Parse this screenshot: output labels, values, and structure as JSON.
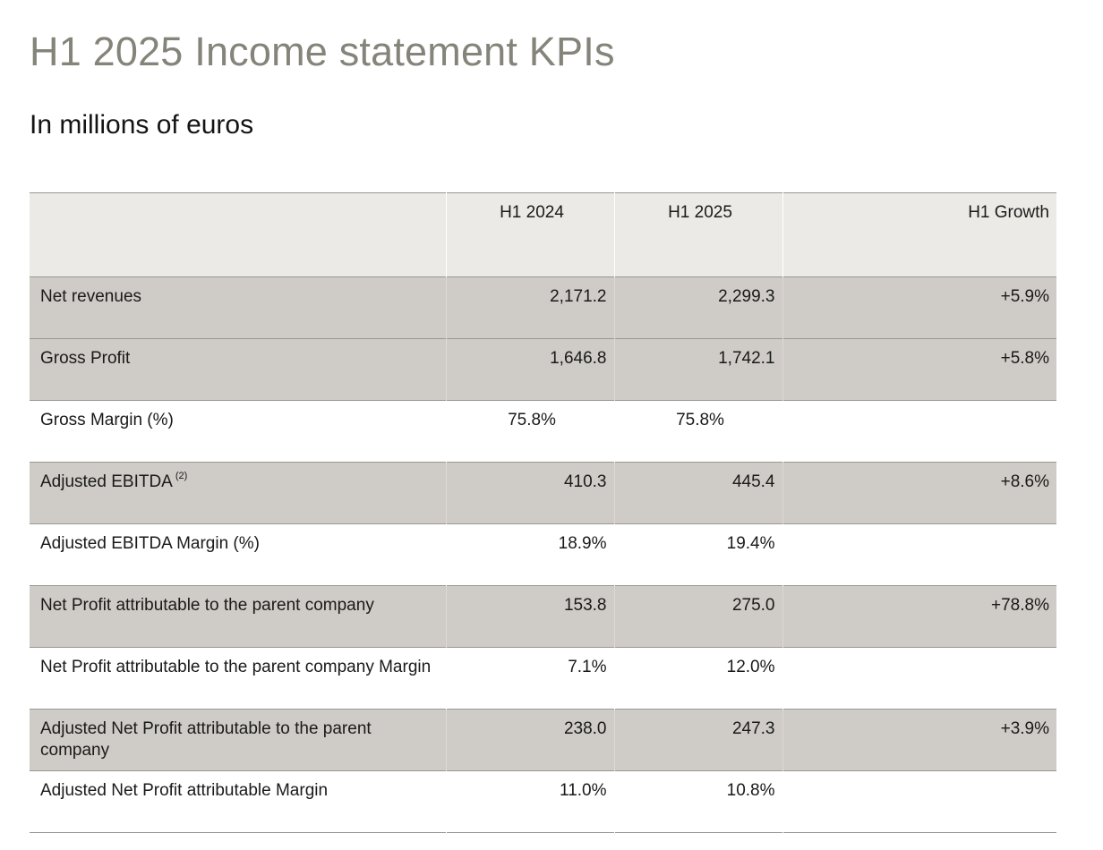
{
  "title": "H1 2025 Income statement KPIs",
  "subtitle": "In millions of euros",
  "table": {
    "headers": {
      "label": "",
      "h1_2024": "H1 2024",
      "h1_2025": "H1 2025",
      "growth": "H1 Growth"
    },
    "rows": [
      {
        "label": "Net revenues",
        "note": "",
        "h1_2024": "2,171.2",
        "h1_2025": "2,299.3",
        "growth": "+5.9%",
        "shaded": true
      },
      {
        "label": "Gross Profit",
        "note": "",
        "h1_2024": "1,646.8",
        "h1_2025": "1,742.1",
        "growth": "+5.8%",
        "shaded": true
      },
      {
        "label": "Gross Margin (%)",
        "note": "",
        "h1_2024": "75.8%",
        "h1_2025": "75.8%",
        "growth": "",
        "shaded": false
      },
      {
        "label": "Adjusted EBITDA",
        "note": "(2)",
        "h1_2024": "410.3",
        "h1_2025": "445.4",
        "growth": "+8.6%",
        "shaded": true
      },
      {
        "label": "Adjusted EBITDA Margin (%)",
        "note": "",
        "h1_2024": "18.9%",
        "h1_2025": "19.4%",
        "growth": "",
        "shaded": false
      },
      {
        "label": "Net Profit attributable to the parent company",
        "note": "",
        "h1_2024": "153.8",
        "h1_2025": "275.0",
        "growth": "+78.8%",
        "shaded": true
      },
      {
        "label": "Net Profit attributable to the parent company Margin",
        "note": "",
        "h1_2024": "7.1%",
        "h1_2025": "12.0%",
        "growth": "",
        "shaded": false
      },
      {
        "label": "Adjusted Net Profit attributable to the parent company",
        "note": "",
        "h1_2024": "238.0",
        "h1_2025": "247.3",
        "growth": "+3.9%",
        "shaded": true
      },
      {
        "label": "Adjusted Net Profit attributable Margin",
        "note": "",
        "h1_2024": "11.0%",
        "h1_2025": "10.8%",
        "growth": "",
        "shaded": false
      }
    ]
  },
  "colors": {
    "title": "#85847a",
    "header_bg": "#ebeae7",
    "shaded_row_bg": "#cfcbc6",
    "rule": "#9a9894"
  }
}
